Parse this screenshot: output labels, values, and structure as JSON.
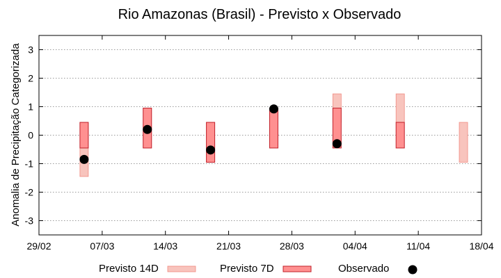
{
  "chart_data": {
    "type": "bar",
    "title": "Rio Amazonas (Brasil) - Previsto x Observado",
    "xlabel": "",
    "ylabel": "Anomalia de Precipitação Categorizada",
    "ylim": [
      -3.5,
      3.5
    ],
    "yticks": [
      3,
      2,
      1,
      0,
      -1,
      -2,
      -3
    ],
    "xticks": [
      {
        "day": 0,
        "label": "29/02"
      },
      {
        "day": 7,
        "label": "07/03"
      },
      {
        "day": 14,
        "label": "14/03"
      },
      {
        "day": 21,
        "label": "21/03"
      },
      {
        "day": 28,
        "label": "28/03"
      },
      {
        "day": 35,
        "label": "04/04"
      },
      {
        "day": 42,
        "label": "11/04"
      },
      {
        "day": 49,
        "label": "18/04"
      }
    ],
    "xlim": [
      0,
      49
    ],
    "grid": true,
    "series": [
      {
        "name": "Previsto 14D",
        "color": "#f8c4bd",
        "stroke": "#f08a80",
        "ranges": [
          {
            "day": 5,
            "low": -1.45,
            "high": 0.45
          },
          {
            "day": 12,
            "low": -0.45,
            "high": 0.95
          },
          {
            "day": 19,
            "low": -0.95,
            "high": 0.45
          },
          {
            "day": 26,
            "low": -0.45,
            "high": 0.95
          },
          {
            "day": 33,
            "low": 0.45,
            "high": 1.45
          },
          {
            "day": 40,
            "low": 0.45,
            "high": 1.45
          },
          {
            "day": 47,
            "low": -0.95,
            "high": 0.45
          }
        ]
      },
      {
        "name": "Previsto 7D",
        "color": "#ff9090",
        "stroke": "#c0202a",
        "ranges": [
          {
            "day": 5,
            "low": -0.45,
            "high": 0.45
          },
          {
            "day": 12,
            "low": -0.45,
            "high": 0.95
          },
          {
            "day": 19,
            "low": -0.95,
            "high": 0.45
          },
          {
            "day": 26,
            "low": -0.45,
            "high": 0.95
          },
          {
            "day": 33,
            "low": -0.45,
            "high": 0.95
          },
          {
            "day": 40,
            "low": -0.45,
            "high": 0.45
          }
        ]
      },
      {
        "name": "Observado",
        "color": "#000000",
        "points": [
          {
            "day": 5,
            "value": -0.85
          },
          {
            "day": 12,
            "value": 0.2
          },
          {
            "day": 19,
            "value": -0.52
          },
          {
            "day": 26,
            "value": 0.92
          },
          {
            "day": 33,
            "value": -0.3
          }
        ]
      }
    ],
    "legend": "bottom"
  }
}
